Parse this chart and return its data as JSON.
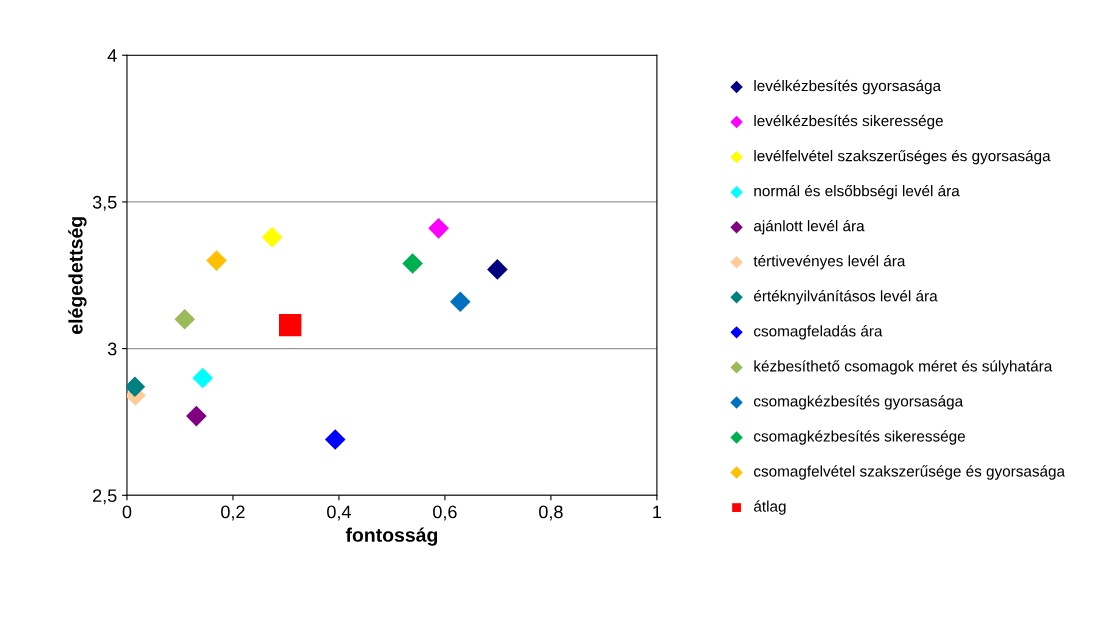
{
  "chart_data": {
    "type": "scatter",
    "xlabel": "fontosság",
    "ylabel": "elégedettség",
    "xlim": [
      0,
      1
    ],
    "ylim": [
      2.5,
      4
    ],
    "xticks": [
      0,
      {
        "value": 0.2,
        "label": "0,2"
      },
      {
        "value": 0.4,
        "label": "0,4"
      },
      {
        "value": 0.6,
        "label": "0,6"
      },
      {
        "value": 0.8,
        "label": "0,8"
      },
      1
    ],
    "yticks": [
      {
        "value": 2.5,
        "label": "2,5"
      },
      3,
      {
        "value": 3.5,
        "label": "3,5"
      },
      4
    ],
    "grid": "y",
    "legend": "right",
    "marker": "diamond",
    "series": [
      {
        "name": "levélkézbesítés gyorsasága",
        "color": "#000080",
        "x": [
          0.699
        ],
        "values": [
          3.27
        ]
      },
      {
        "name": "levélkézbesítés sikeressége",
        "color": "#ff00ff",
        "x": [
          0.588
        ],
        "values": [
          3.41
        ]
      },
      {
        "name": "levélfelvétel szakszerűséges és gyorsasága",
        "color": "#ffff00",
        "x": [
          0.274
        ],
        "values": [
          3.38
        ]
      },
      {
        "name": "normál és elsőbbségi levél ára",
        "color": "#00ffff",
        "x": [
          0.143
        ],
        "values": [
          2.9
        ]
      },
      {
        "name": "ajánlott levél ára",
        "color": "#800080",
        "x": [
          0.131
        ],
        "values": [
          2.77
        ]
      },
      {
        "name": "tértivevényes levél ára",
        "color": "#ffcc99",
        "x": [
          0.016
        ],
        "values": [
          2.84
        ]
      },
      {
        "name": "értéknyilvánításos levél ára",
        "color": "#008080",
        "x": [
          0.015
        ],
        "values": [
          2.87
        ]
      },
      {
        "name": "csomagfeladás ára",
        "color": "#0000ff",
        "x": [
          0.393
        ],
        "values": [
          2.69
        ]
      },
      {
        "name": "kézbesíthető csomagok méret és súlyhatára",
        "color": "#9bbb59",
        "x": [
          0.109
        ],
        "values": [
          3.1
        ]
      },
      {
        "name": "csomagkézbesítés gyorsasága",
        "color": "#0070c0",
        "x": [
          0.629
        ],
        "values": [
          3.16
        ]
      },
      {
        "name": "csomagkézbesítés sikeressége",
        "color": "#00b050",
        "x": [
          0.539
        ],
        "values": [
          3.29
        ]
      },
      {
        "name": "csomagfelvétel szakszerűsége és gyorsasága",
        "color": "#ffc000",
        "x": [
          0.169
        ],
        "values": [
          3.3
        ]
      },
      {
        "name": "átlag",
        "color": "#ff0000",
        "x": [
          0.308
        ],
        "values": [
          3.08
        ],
        "marker": "square"
      }
    ]
  }
}
